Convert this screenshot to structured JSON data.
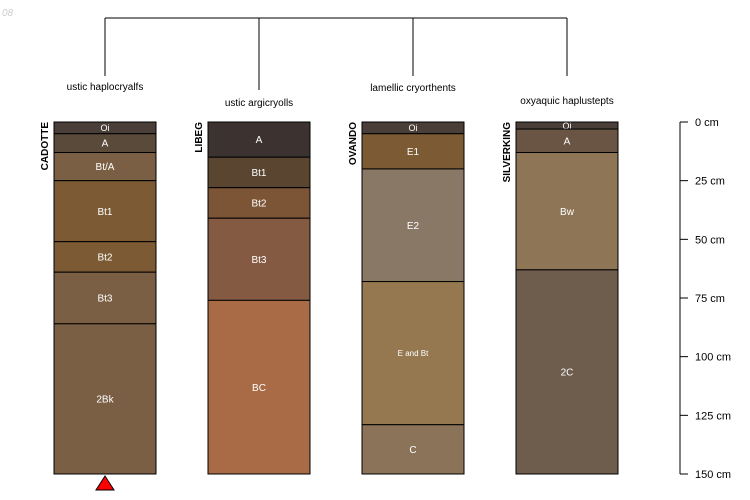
{
  "corner_label": "08",
  "depth_unit": "cm",
  "depth_max": 150,
  "depth_ticks": [
    0,
    25,
    50,
    75,
    100,
    125,
    150
  ],
  "marker_profile": "CADOTTE",
  "profiles": [
    {
      "name": "CADOTTE",
      "classification": "ustic haplocryalfs",
      "horizons": [
        {
          "name": "Oi",
          "top": 0,
          "bottom": 5,
          "color": "#4a3f38"
        },
        {
          "name": "A",
          "top": 5,
          "bottom": 13,
          "color": "#5a4a3a"
        },
        {
          "name": "Bt/A",
          "top": 13,
          "bottom": 25,
          "color": "#7a5f44"
        },
        {
          "name": "Bt1",
          "top": 25,
          "bottom": 51,
          "color": "#7b5a34"
        },
        {
          "name": "Bt2",
          "top": 51,
          "bottom": 64,
          "color": "#7b5a34"
        },
        {
          "name": "Bt3",
          "top": 64,
          "bottom": 86,
          "color": "#7a5f44"
        },
        {
          "name": "2Bk",
          "top": 86,
          "bottom": 150,
          "color": "#7a5f44"
        }
      ]
    },
    {
      "name": "LIBEG",
      "classification": "ustic argicryolls",
      "horizons": [
        {
          "name": "A",
          "top": 0,
          "bottom": 15,
          "color": "#3c3330"
        },
        {
          "name": "Bt1",
          "top": 15,
          "bottom": 28,
          "color": "#5a4530"
        },
        {
          "name": "Bt2",
          "top": 28,
          "bottom": 41,
          "color": "#7b5536"
        },
        {
          "name": "Bt3",
          "top": 41,
          "bottom": 76,
          "color": "#855a42"
        },
        {
          "name": "BC",
          "top": 76,
          "bottom": 150,
          "color": "#a96b46"
        }
      ]
    },
    {
      "name": "OVANDO",
      "classification": "lamellic cryorthents",
      "horizons": [
        {
          "name": "Oi",
          "top": 0,
          "bottom": 5,
          "color": "#4a3f38"
        },
        {
          "name": "E1",
          "top": 5,
          "bottom": 20,
          "color": "#7b5a34"
        },
        {
          "name": "E2",
          "top": 20,
          "bottom": 68,
          "color": "#8a7866"
        },
        {
          "name": "E and Bt",
          "top": 68,
          "bottom": 129,
          "color": "#957850"
        },
        {
          "name": "C",
          "top": 129,
          "bottom": 150,
          "color": "#8a7358"
        }
      ]
    },
    {
      "name": "SILVERKING",
      "classification": "oxyaquic haplustepts",
      "horizons": [
        {
          "name": "Oi",
          "top": 0,
          "bottom": 3,
          "color": "#4a3f38"
        },
        {
          "name": "A",
          "top": 3,
          "bottom": 13,
          "color": "#6a5544"
        },
        {
          "name": "Bw",
          "top": 13,
          "bottom": 63,
          "color": "#8e7556"
        },
        {
          "name": "2C",
          "top": 63,
          "bottom": 150,
          "color": "#6e5c4c"
        }
      ]
    }
  ]
}
